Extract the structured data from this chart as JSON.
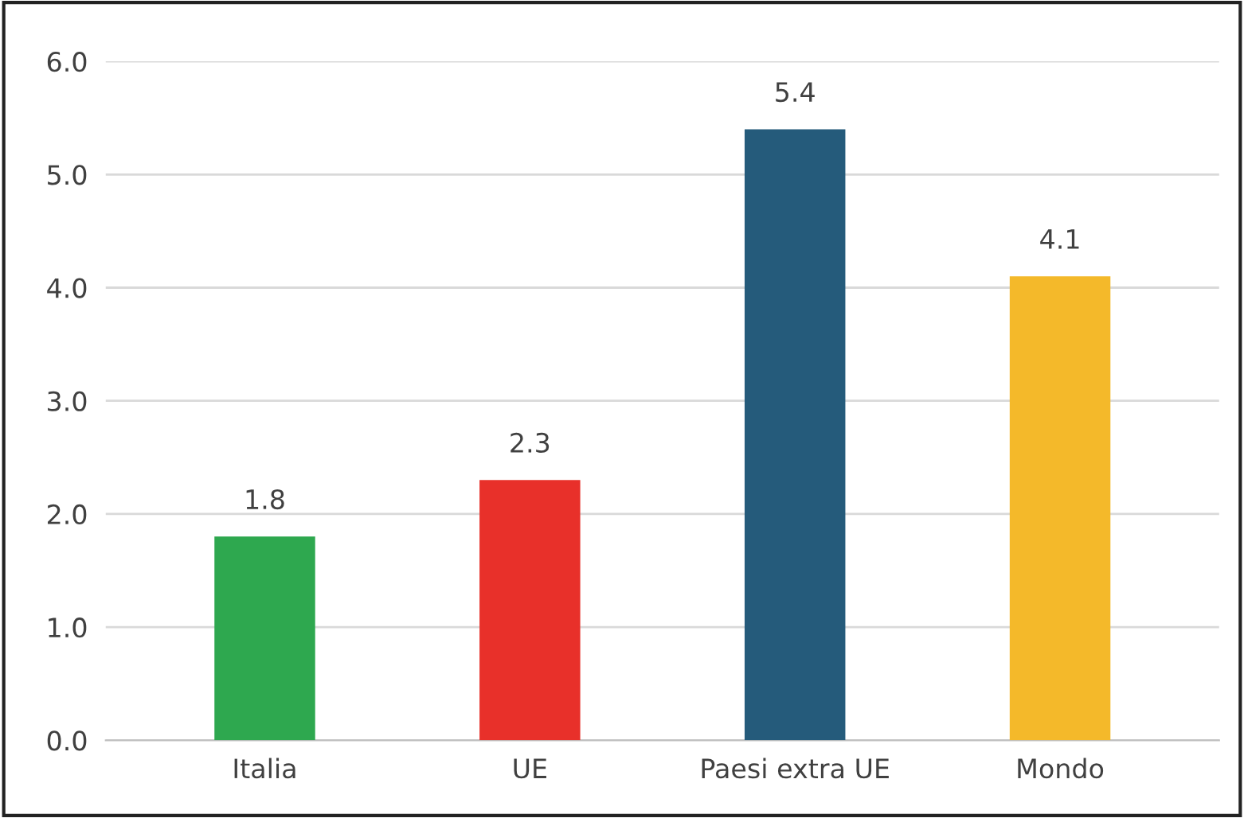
{
  "chart_data": {
    "type": "bar",
    "categories": [
      "Italia",
      "UE",
      "Paesi extra UE",
      "Mondo"
    ],
    "values": [
      1.8,
      2.3,
      5.4,
      4.1
    ],
    "colors": [
      "#2ea84f",
      "#e8302a",
      "#255b7b",
      "#f4b92a"
    ],
    "ylim": [
      0,
      6
    ],
    "yticks": [
      {
        "value": 0,
        "label": "0.0"
      },
      {
        "value": 1,
        "label": "1.0"
      },
      {
        "value": 2,
        "label": "2.0"
      },
      {
        "value": 3,
        "label": "3.0"
      },
      {
        "value": 4,
        "label": "4.0"
      },
      {
        "value": 5,
        "label": "5.0"
      },
      {
        "value": 6,
        "label": "6.0"
      }
    ],
    "grid": "y",
    "data_labels": true
  }
}
